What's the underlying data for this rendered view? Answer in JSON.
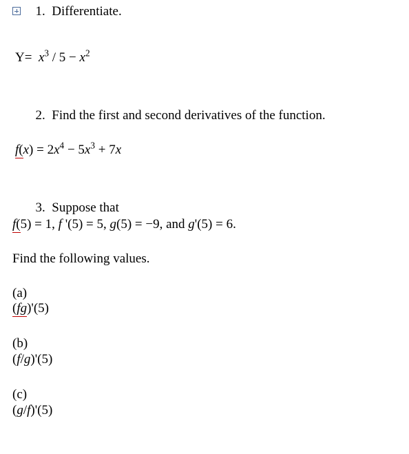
{
  "doc": {
    "background_color": "#ffffff",
    "text_color": "#000000",
    "underline_color": "#c00000",
    "font_family": "Times New Roman",
    "font_size_pt": 14
  },
  "q1": {
    "num": "1.",
    "title": "Differentiate.",
    "eq_lhs": "Y=",
    "eq_t1": "x",
    "eq_e1": "3",
    "eq_div": " / 5 − ",
    "eq_t2": "x",
    "eq_e2": "2"
  },
  "q2": {
    "num": "2.",
    "title": "Find the first and second derivatives of the function.",
    "eq_f": "f",
    "eq_open": "(",
    "eq_x": "x",
    "eq_close_eq": ") = 2",
    "eq_x2": "x",
    "eq_e4": "4",
    "eq_mid1": " − 5",
    "eq_x3": "x",
    "eq_e3": "3",
    "eq_mid2": " + 7",
    "eq_x4": "x"
  },
  "q3": {
    "num": "3.",
    "title": "Suppose that",
    "given_f": "f",
    "given_open": "(",
    "given_p1": "5) = 1, ",
    "given_fprime": "f ",
    "given_prime": "'(",
    "given_p2": "5) = 5, ",
    "given_g": "g",
    "given_open2": "(5) = −9, ",
    "given_and": "and ",
    "given_gprime": "g",
    "given_prime2": "'(5) = 6.",
    "find": "Find the following values.",
    "a_label": "(a)",
    "a_open": "(",
    "a_f": "f",
    "a_g": "g",
    "a_close": ")'(5)",
    "b_label": "(b)",
    "b_open": "(",
    "b_f": "f",
    "b_slash": "/",
    "b_g": "g",
    "b_close": ")'(5)",
    "c_label": "(c)",
    "c_open": "(",
    "c_g": "g",
    "c_slash": "/",
    "c_f": "f",
    "c_close": ")'(5)"
  }
}
